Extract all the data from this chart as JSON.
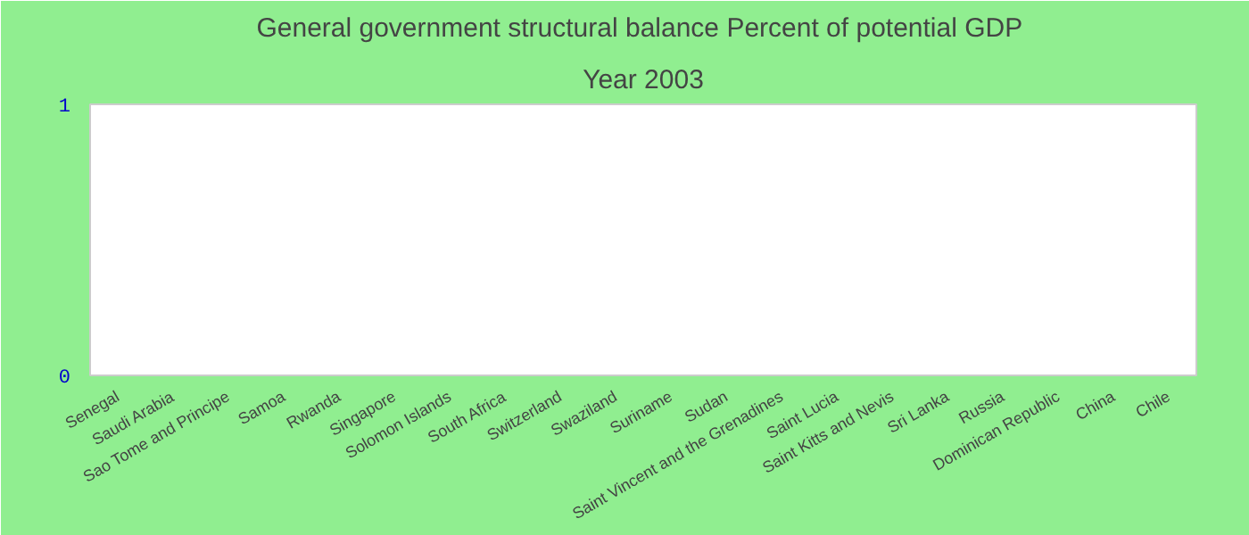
{
  "chart_data": {
    "type": "bar",
    "title": "General government structural balance  Percent of potential GDP",
    "subtitle": "Year 2003",
    "categories": [
      "Senegal",
      "Saudi Arabia",
      "Sao Tome and Principe",
      "Samoa",
      "Rwanda",
      "Singapore",
      "Solomon Islands",
      "South Africa",
      "Switzerland",
      "Swaziland",
      "Suriname",
      "Sudan",
      "Saint Vincent and the Grenadines",
      "Saint Lucia",
      "Saint Kitts and Nevis",
      "Sri Lanka",
      "Russia",
      "Dominican Republic",
      "China",
      "Chile"
    ],
    "values": [
      null,
      null,
      null,
      null,
      null,
      null,
      null,
      null,
      null,
      null,
      null,
      null,
      null,
      null,
      null,
      null,
      null,
      null,
      null,
      null
    ],
    "ylim": [
      0,
      1
    ],
    "yticks": [
      0,
      1
    ]
  }
}
